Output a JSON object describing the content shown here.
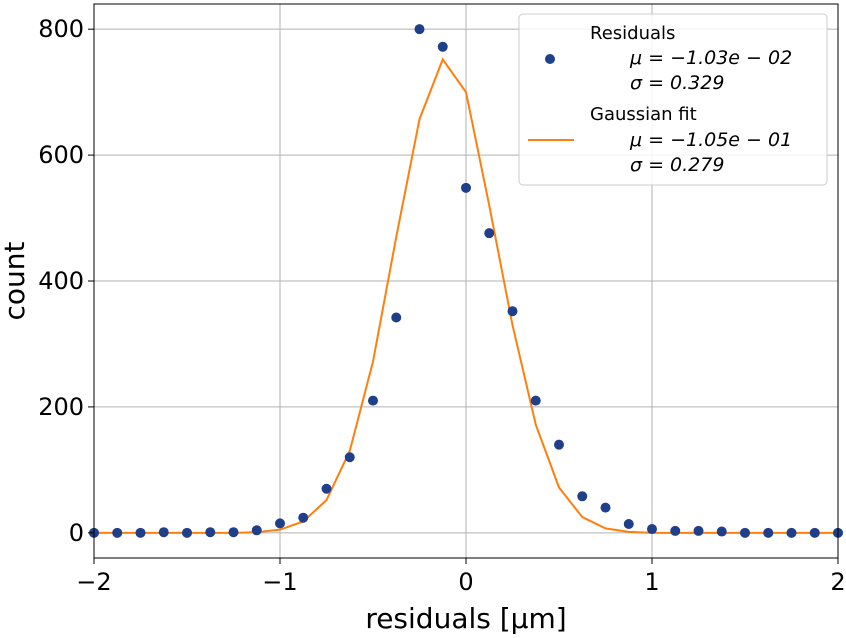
{
  "chart_data": {
    "type": "scatter",
    "xlabel": "residuals [μm]",
    "ylabel": "count",
    "xlim": [
      -2,
      2
    ],
    "ylim": [
      -40,
      840
    ],
    "x_ticks": [
      -2,
      -1,
      0,
      1,
      2
    ],
    "x_tick_labels": [
      "−2",
      "−1",
      "0",
      "1",
      "2"
    ],
    "y_ticks": [
      0,
      200,
      400,
      600,
      800
    ],
    "y_tick_labels": [
      "0",
      "200",
      "400",
      "600",
      "800"
    ],
    "grid": true,
    "legend_position": "top-right",
    "series": [
      {
        "name": "Residuals",
        "kind": "scatter",
        "color": "#1f3f8a",
        "stats": [
          "μ = −1.03e − 02",
          "σ = 0.329"
        ],
        "x": [
          -2.0,
          -1.875,
          -1.75,
          -1.625,
          -1.5,
          -1.375,
          -1.25,
          -1.125,
          -1.0,
          -0.875,
          -0.75,
          -0.625,
          -0.5,
          -0.375,
          -0.25,
          -0.125,
          0.0,
          0.125,
          0.25,
          0.375,
          0.5,
          0.625,
          0.75,
          0.875,
          1.0,
          1.125,
          1.25,
          1.375,
          1.5,
          1.625,
          1.75,
          1.875,
          2.0
        ],
        "y": [
          0,
          0,
          0,
          1,
          0,
          1,
          1,
          4,
          15,
          24,
          70,
          120,
          210,
          342,
          800,
          772,
          548,
          476,
          352,
          210,
          140,
          58,
          40,
          14,
          6,
          3,
          3,
          2,
          0,
          0,
          0,
          0,
          0
        ]
      },
      {
        "name": "Gaussian fit",
        "kind": "line",
        "color": "#ff7f0e",
        "stats": [
          "μ = −1.05e − 01",
          "σ = 0.279"
        ],
        "x": [
          -2.0,
          -1.875,
          -1.75,
          -1.625,
          -1.5,
          -1.375,
          -1.25,
          -1.125,
          -1.0,
          -0.875,
          -0.75,
          -0.625,
          -0.5,
          -0.375,
          -0.25,
          -0.125,
          0.0,
          0.125,
          0.25,
          0.375,
          0.5,
          0.625,
          0.75,
          0.875,
          1.0,
          1.125,
          1.25,
          1.375,
          1.5,
          1.625,
          1.75,
          1.875,
          2.0
        ],
        "y": [
          0,
          0,
          0,
          0,
          0,
          0,
          0,
          1,
          5,
          18,
          52,
          130,
          272,
          470,
          657,
          752,
          700,
          520,
          330,
          172,
          72,
          25,
          7,
          1.5,
          0,
          0,
          0,
          0,
          0,
          0,
          0,
          0,
          0
        ]
      }
    ]
  }
}
